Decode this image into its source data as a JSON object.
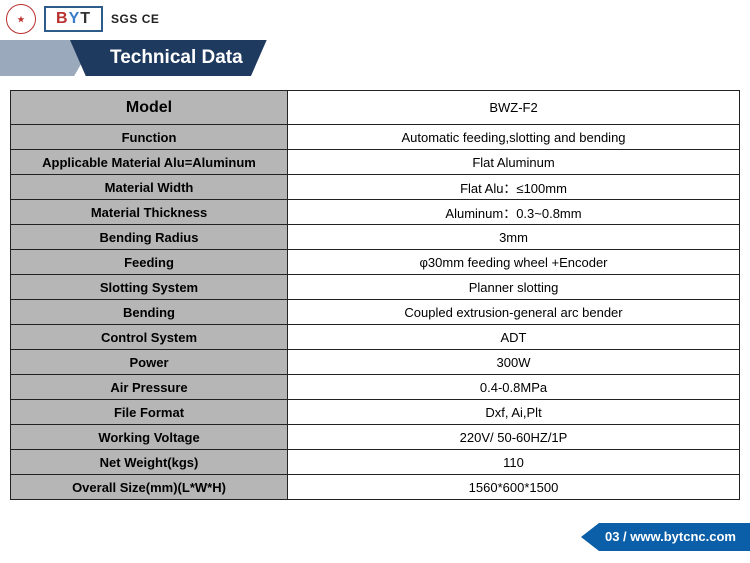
{
  "logos": {
    "circle_text": "★",
    "byt": {
      "b": "B",
      "y": "Y",
      "t": "T"
    },
    "certs": "SGS  CE"
  },
  "banner": {
    "title": "Technical Data"
  },
  "table": {
    "rows": [
      {
        "label": "Model",
        "value": "BWZ-F2"
      },
      {
        "label": "Function",
        "value": "Automatic feeding,slotting and bending"
      },
      {
        "label": "Applicable Material  Alu=Aluminum",
        "value": "Flat Aluminum"
      },
      {
        "label": "Material Width",
        "value": "Flat Alu：≤100mm"
      },
      {
        "label": "Material Thickness",
        "value": "Aluminum：0.3~0.8mm"
      },
      {
        "label": "Bending Radius",
        "value": "3mm"
      },
      {
        "label": "Feeding",
        "value": "φ30mm feeding wheel +Encoder"
      },
      {
        "label": "Slotting System",
        "value": "Planner slotting"
      },
      {
        "label": "Bending",
        "value": "Coupled extrusion-general arc bender"
      },
      {
        "label": "Control System",
        "value": "ADT"
      },
      {
        "label": "Power",
        "value": "300W"
      },
      {
        "label": "Air Pressure",
        "value": "0.4-0.8MPa"
      },
      {
        "label": "File Format",
        "value": "Dxf, Ai,Plt"
      },
      {
        "label": "Working Voltage",
        "value": "220V/ 50-60HZ/1P"
      },
      {
        "label": "Net Weight(kgs)",
        "value": "110"
      },
      {
        "label": "Overall Size(mm)(L*W*H)",
        "value": "1560*600*1500"
      }
    ]
  },
  "footer": {
    "page": "03",
    "sep": " / ",
    "url": "www.bytcnc.com"
  },
  "colors": {
    "banner_bg": "#1f3a5f",
    "banner_tri": "#9aa9bc",
    "label_bg": "#b6b6b6",
    "footer_bg": "#0a5fa8",
    "border": "#222222"
  }
}
